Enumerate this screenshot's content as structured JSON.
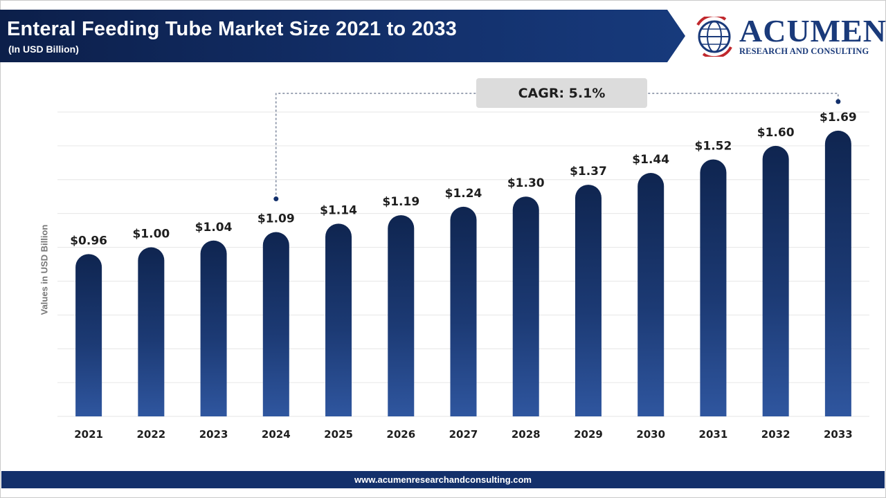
{
  "header": {
    "title": "Enteral Feeding Tube Market Size 2021 to 2033",
    "subtitle": "(In USD Billion)"
  },
  "logo": {
    "word": "ACUMEN",
    "tagline": "RESEARCH AND CONSULTING"
  },
  "footer": {
    "url": "www.acumenresearchandconsulting.com"
  },
  "colors": {
    "banner": "#13306b",
    "bar_top": "#0f2550",
    "bar_bottom": "#2f569f",
    "logo": "#1a3a7a",
    "logo_accent": "#c0282d"
  },
  "chart_data": {
    "type": "bar",
    "title": "Enteral Feeding Tube Market Size 2021 to 2033",
    "ylabel": "Values in USD Billion",
    "xlabel": "",
    "categories": [
      "2021",
      "2022",
      "2023",
      "2024",
      "2025",
      "2026",
      "2027",
      "2028",
      "2029",
      "2030",
      "2031",
      "2032",
      "2033"
    ],
    "values": [
      0.96,
      1.0,
      1.04,
      1.09,
      1.14,
      1.19,
      1.24,
      1.3,
      1.37,
      1.44,
      1.52,
      1.6,
      1.69
    ],
    "data_labels": [
      "$0.96",
      "$1.00",
      "$1.04",
      "$1.09",
      "$1.14",
      "$1.19",
      "$1.24",
      "$1.30",
      "$1.37",
      "$1.44",
      "$1.52",
      "$1.60",
      "$1.69"
    ],
    "ylim": [
      0,
      1.8
    ],
    "grid": true,
    "annotation": {
      "text": "CAGR: 5.1%",
      "from": "2024",
      "to": "2033"
    }
  }
}
